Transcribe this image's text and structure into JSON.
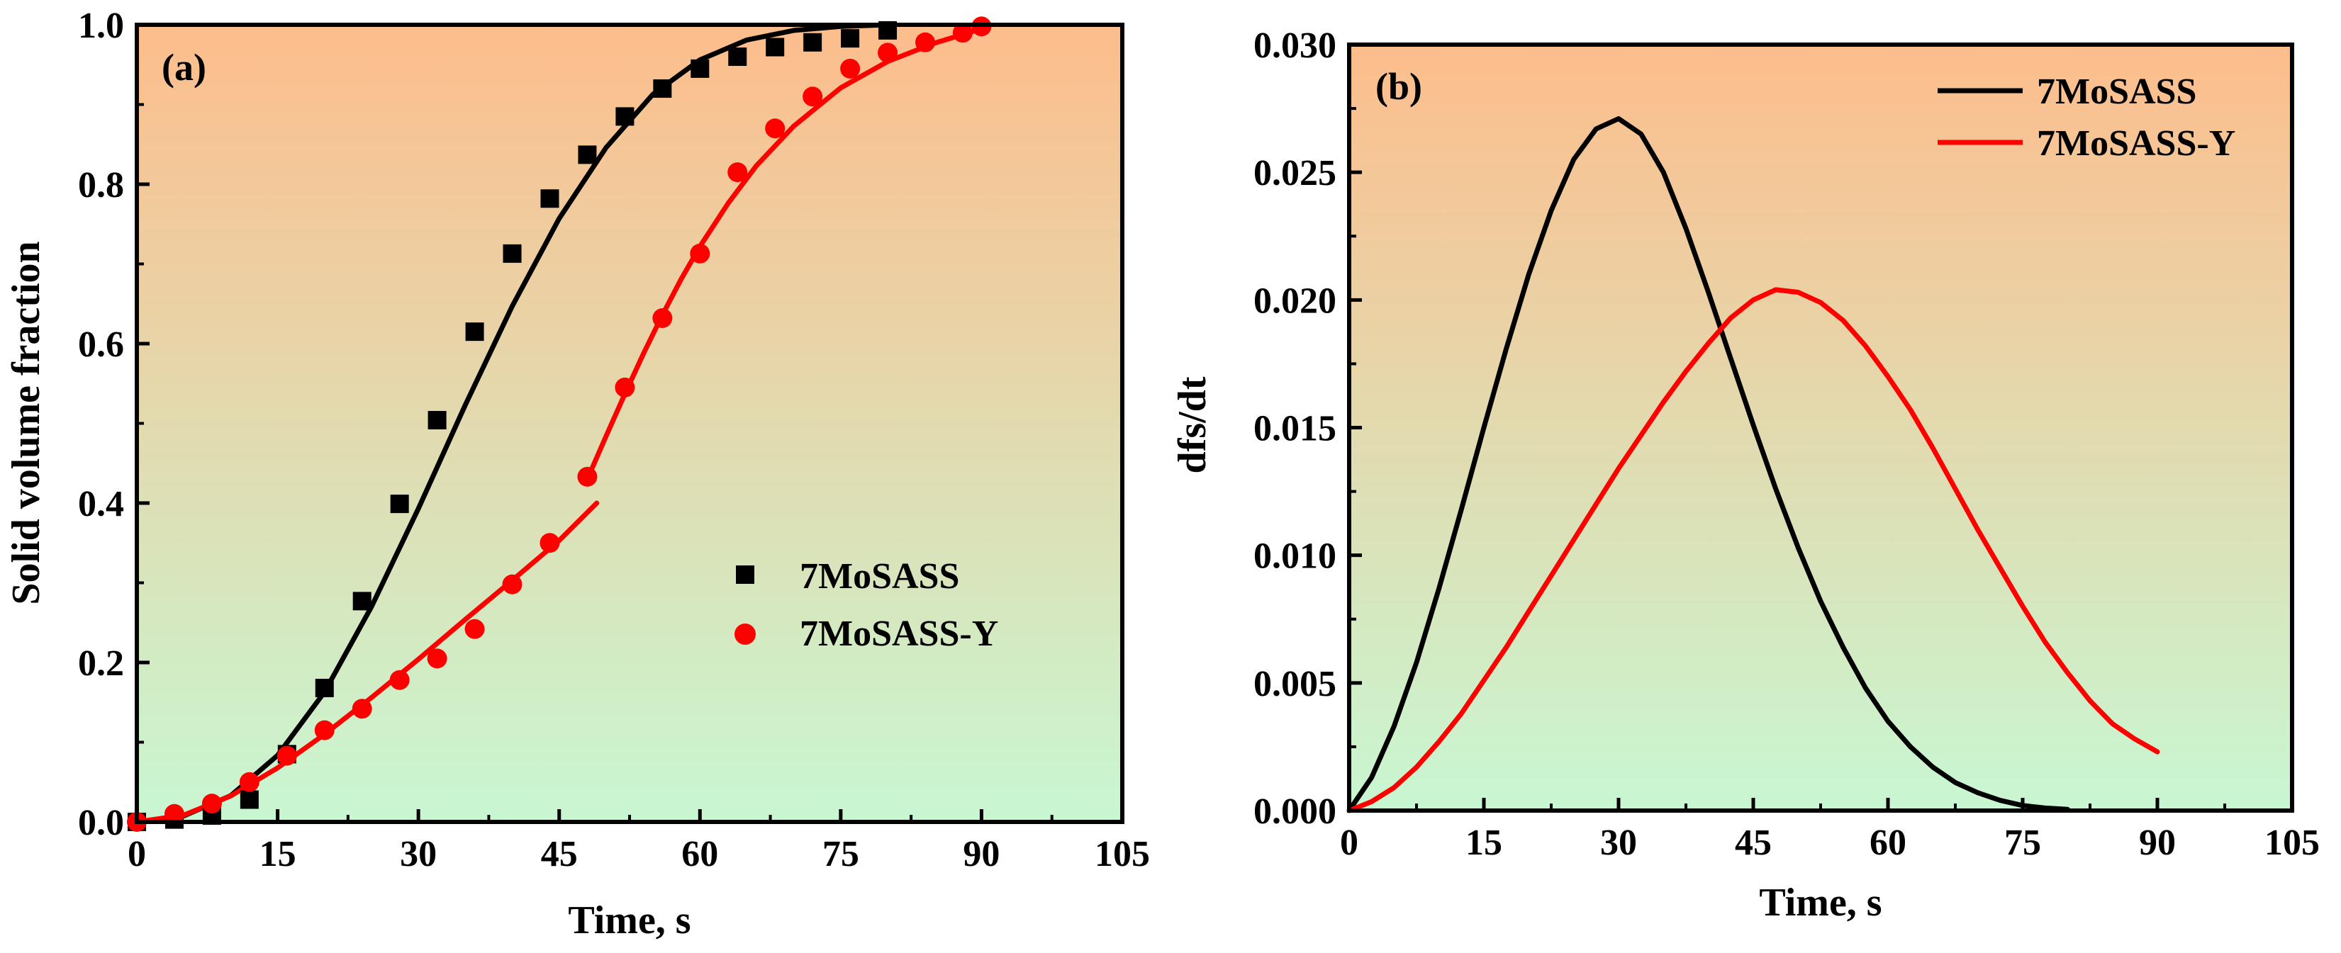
{
  "colors": {
    "black_series": "#000000",
    "red_series": "#ff0000",
    "background_top": "#fdbd8c",
    "background_bottom": "#c8f7d2"
  },
  "chart_data": [
    {
      "type": "scatter",
      "panel_label": "(a)",
      "xlabel": "Time, s",
      "ylabel": "Solid volume fraction",
      "xlim": [
        0,
        105
      ],
      "ylim": [
        0,
        1.0
      ],
      "x_ticks": [
        0,
        15,
        30,
        45,
        60,
        75,
        90,
        105
      ],
      "y_ticks": [
        0.0,
        0.2,
        0.4,
        0.6,
        0.8,
        1.0
      ],
      "x_tick_labels": [
        "0",
        "15",
        "30",
        "45",
        "60",
        "75",
        "90",
        "105"
      ],
      "y_tick_labels": [
        "0.0",
        "0.2",
        "0.4",
        "0.6",
        "0.8",
        "1.0"
      ],
      "legend_position": "center-right",
      "series": [
        {
          "name": "7MoSASS",
          "marker": "square",
          "color": "#000000",
          "points": [
            [
              0,
              0.0
            ],
            [
              4,
              0.003
            ],
            [
              8,
              0.008
            ],
            [
              12,
              0.028
            ],
            [
              16,
              0.085
            ],
            [
              20,
              0.168
            ],
            [
              24,
              0.277
            ],
            [
              28,
              0.399
            ],
            [
              32,
              0.504
            ],
            [
              36,
              0.615
            ],
            [
              40,
              0.713
            ],
            [
              44,
              0.782
            ],
            [
              48,
              0.837
            ],
            [
              52,
              0.885
            ],
            [
              56,
              0.92
            ],
            [
              60,
              0.945
            ],
            [
              64,
              0.96
            ],
            [
              68,
              0.972
            ],
            [
              72,
              0.978
            ],
            [
              76,
              0.983
            ],
            [
              80,
              0.993
            ]
          ],
          "fit": [
            [
              0,
              0.0
            ],
            [
              5,
              0.0076
            ],
            [
              10,
              0.0329
            ],
            [
              15,
              0.0836
            ],
            [
              20,
              0.163
            ],
            [
              25,
              0.27
            ],
            [
              30,
              0.393
            ],
            [
              35,
              0.523
            ],
            [
              40,
              0.647
            ],
            [
              45,
              0.757
            ],
            [
              50,
              0.846
            ],
            [
              55,
              0.913
            ],
            [
              60,
              0.956
            ],
            [
              65,
              0.981
            ],
            [
              70,
              0.993
            ],
            [
              75,
              0.998
            ],
            [
              80,
              1.0
            ]
          ]
        },
        {
          "name": "7MoSASS-Y",
          "marker": "circle",
          "color": "#ff0000",
          "points": [
            [
              0,
              0.0
            ],
            [
              4,
              0.01
            ],
            [
              8,
              0.023
            ],
            [
              12,
              0.05
            ],
            [
              16,
              0.083
            ],
            [
              20,
              0.115
            ],
            [
              24,
              0.142
            ],
            [
              28,
              0.178
            ],
            [
              32,
              0.205
            ],
            [
              36,
              0.242
            ],
            [
              40,
              0.298
            ],
            [
              44,
              0.35
            ],
            [
              48,
              0.433
            ],
            [
              52,
              0.545
            ],
            [
              56,
              0.632
            ],
            [
              60,
              0.713
            ],
            [
              64,
              0.815
            ],
            [
              68,
              0.87
            ],
            [
              72,
              0.91
            ],
            [
              76,
              0.945
            ],
            [
              80,
              0.965
            ],
            [
              84,
              0.978
            ],
            [
              88,
              0.99
            ],
            [
              90,
              0.998
            ]
          ],
          "fit_segment_1": [
            [
              0,
              0.0
            ],
            [
              5,
              0.0085
            ],
            [
              10,
              0.0325
            ],
            [
              15,
              0.0678
            ],
            [
              20,
              0.11
            ],
            [
              25,
              0.156
            ],
            [
              30,
              0.204
            ],
            [
              35,
              0.254
            ],
            [
              40,
              0.303
            ],
            [
              45,
              0.353
            ],
            [
              49,
              0.4
            ]
          ],
          "fit_segment_2": [
            [
              48,
              0.43
            ],
            [
              50,
              0.484
            ],
            [
              52,
              0.537
            ],
            [
              54,
              0.588
            ],
            [
              56,
              0.636
            ],
            [
              58,
              0.681
            ],
            [
              60,
              0.722
            ],
            [
              63,
              0.776
            ],
            [
              66,
              0.823
            ],
            [
              70,
              0.873
            ],
            [
              75,
              0.921
            ],
            [
              80,
              0.954
            ],
            [
              85,
              0.977
            ],
            [
              90,
              0.995
            ]
          ]
        }
      ]
    },
    {
      "type": "line",
      "panel_label": "(b)",
      "xlabel": "Time, s",
      "ylabel": "dfs/dt",
      "xlim": [
        0,
        105
      ],
      "ylim": [
        0,
        0.03
      ],
      "x_ticks": [
        0,
        15,
        30,
        45,
        60,
        75,
        90,
        105
      ],
      "y_ticks": [
        0.0,
        0.005,
        0.01,
        0.015,
        0.02,
        0.025,
        0.03
      ],
      "x_tick_labels": [
        "0",
        "15",
        "30",
        "45",
        "60",
        "75",
        "90",
        "105"
      ],
      "y_tick_labels": [
        "0.000",
        "0.005",
        "0.010",
        "0.015",
        "0.020",
        "0.025",
        "0.030"
      ],
      "legend_position": "top-right",
      "series": [
        {
          "name": "7MoSASS",
          "color": "#000000",
          "points": [
            [
              0,
              0.0
            ],
            [
              2.5,
              0.0013
            ],
            [
              5,
              0.0033
            ],
            [
              7.5,
              0.0058
            ],
            [
              10,
              0.0087
            ],
            [
              12.5,
              0.0118
            ],
            [
              15,
              0.015
            ],
            [
              17.5,
              0.0181
            ],
            [
              20,
              0.021
            ],
            [
              22.5,
              0.0235
            ],
            [
              25,
              0.0255
            ],
            [
              27.5,
              0.0267
            ],
            [
              30,
              0.0271
            ],
            [
              32.5,
              0.0265
            ],
            [
              35,
              0.025
            ],
            [
              37.5,
              0.0228
            ],
            [
              40,
              0.0203
            ],
            [
              42.5,
              0.0177
            ],
            [
              45,
              0.0151
            ],
            [
              47.5,
              0.0126
            ],
            [
              50,
              0.0103
            ],
            [
              52.5,
              0.0082
            ],
            [
              55,
              0.0064
            ],
            [
              57.5,
              0.0048
            ],
            [
              60,
              0.0035
            ],
            [
              62.5,
              0.0025
            ],
            [
              65,
              0.0017
            ],
            [
              67.5,
              0.0011
            ],
            [
              70,
              0.0007
            ],
            [
              72.5,
              0.0004
            ],
            [
              75,
              0.0002
            ],
            [
              77.5,
              0.0001
            ],
            [
              80,
              5e-05
            ]
          ]
        },
        {
          "name": "7MoSASS-Y",
          "color": "#ff0000",
          "points": [
            [
              0,
              0.0
            ],
            [
              2.5,
              0.00035
            ],
            [
              5,
              0.0009
            ],
            [
              7.5,
              0.0017
            ],
            [
              10,
              0.0027
            ],
            [
              12.5,
              0.0038
            ],
            [
              15,
              0.0051
            ],
            [
              17.5,
              0.0064
            ],
            [
              20,
              0.0078
            ],
            [
              22.5,
              0.0092
            ],
            [
              25,
              0.0106
            ],
            [
              27.5,
              0.012
            ],
            [
              30,
              0.0134
            ],
            [
              32.5,
              0.0147
            ],
            [
              35,
              0.016
            ],
            [
              37.5,
              0.0172
            ],
            [
              40,
              0.0183
            ],
            [
              42.5,
              0.0193
            ],
            [
              45,
              0.02
            ],
            [
              47.5,
              0.0204
            ],
            [
              50,
              0.0203
            ],
            [
              52.5,
              0.0199
            ],
            [
              55,
              0.0192
            ],
            [
              57.5,
              0.0182
            ],
            [
              60,
              0.017
            ],
            [
              62.5,
              0.0157
            ],
            [
              65,
              0.0142
            ],
            [
              67.5,
              0.0126
            ],
            [
              70,
              0.011
            ],
            [
              72.5,
              0.0095
            ],
            [
              75,
              0.008
            ],
            [
              77.5,
              0.0066
            ],
            [
              80,
              0.0054
            ],
            [
              82.5,
              0.0043
            ],
            [
              85,
              0.0034
            ],
            [
              87.5,
              0.0028
            ],
            [
              90,
              0.0023
            ]
          ]
        }
      ]
    }
  ]
}
